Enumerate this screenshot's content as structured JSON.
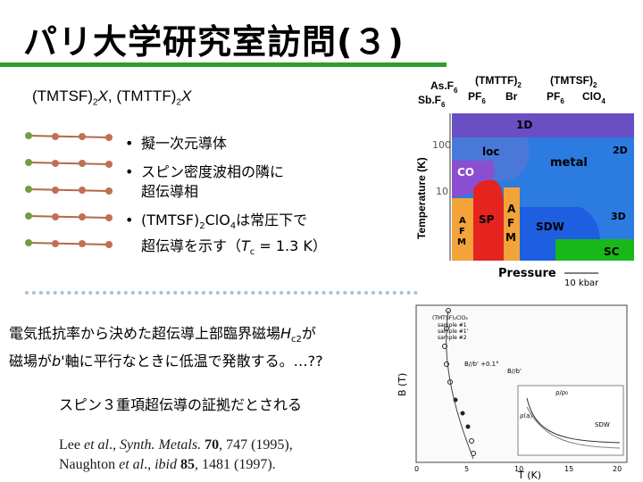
{
  "slide": {
    "title": "パリ大学研究室訪問(３)",
    "accent_color": "#2e9e2e",
    "formula": {
      "part1_open": "(TMTSF)",
      "part1_sub": "2",
      "part1_var": "X",
      "sep": ", ",
      "part2_open": "(TMTTF)",
      "part2_sub": "2",
      "part2_var": "X"
    },
    "bullets": {
      "b1": "擬一次元導体",
      "b2_line1": "スピン密度波相の隣に",
      "b2_line2": "超伝導相",
      "b3_line1_pre": "(TMTSF)",
      "b3_line1_sub": "2",
      "b3_line1_mid": "ClO",
      "b3_line1_sub2": "4",
      "b3_line1_post": "は常圧下で",
      "b3_line2_pre": "超伝導を示す（",
      "b3_line2_var": "T",
      "b3_line2_sub": "c",
      "b3_line2_post": " = 1.3 K）"
    },
    "hc2_text": {
      "line1_pre": "電気抵抗率から決めた超伝導上部臨界磁場",
      "line1_var": "H",
      "line1_sub": "c2",
      "line1_post": "が",
      "line2_pre": "磁場が",
      "line2_var": "b'",
      "line2_post": "軸に平行なときに低温で発散する。…??"
    },
    "evidence": "スピン３重項超伝導の証拠だとされる",
    "references": {
      "ref1_pre": "Lee ",
      "ref1_etal": "et al",
      "ref1_mid": "., ",
      "ref1_journal": "Synth. Metals.",
      "ref1_vol": "70",
      "ref1_post": ", 747 (1995),",
      "ref2_pre": "Naughton ",
      "ref2_etal": "et al",
      "ref2_mid": "., ",
      "ref2_journal": "ibid",
      "ref2_vol": "85",
      "ref2_post": ", 1481 (1997)."
    }
  },
  "phase_diagram": {
    "top_labels": {
      "asf6": "As.F",
      "tmttf2": "(TMTTF)",
      "tmttf2_sub": "2",
      "tmtsf2": "(TMTSF)",
      "tmtsf2_sub": "2",
      "sbf6": "Sb.F",
      "sbf6_sub": "6",
      "asf6_sub": "6",
      "pf6_a": "PF",
      "pf6_a_sub": "6",
      "br": "Br",
      "pf6_b": "PF",
      "pf6_b_sub": "6",
      "clo4": "ClO",
      "clo4_sub": "4"
    },
    "ylabel": "Temperature (K)",
    "y_ticks": [
      "100",
      "10"
    ],
    "regions": {
      "d1": "1D",
      "loc": "loc",
      "d2": "2D",
      "metal": "metal",
      "co": "CO",
      "sp": "SP",
      "afm_left": [
        "A",
        "F",
        "M"
      ],
      "afm_mid": [
        "A",
        "F",
        "M"
      ],
      "sdw": "SDW",
      "d3": "3D",
      "sc": "SC"
    },
    "xlabel": "Pressure",
    "scale_label": "10 kbar",
    "colors": {
      "d1": "#6a4fc4",
      "loc": "#4a78d8",
      "metal": "#2c7be0",
      "co": "#8a4fd0",
      "sp": "#e5231f",
      "afm": "#f2a33a",
      "sdw": "#1d5fe0",
      "sc": "#18b818",
      "afm_yellow": "#f5e64a"
    }
  },
  "hc2_plot": {
    "ylabel": "B (T)",
    "xlabel": "T (K)",
    "legend": [
      "(TMTSF)₂ClO₄",
      "sample #1",
      "sample #1'",
      "sample #2"
    ],
    "annotation_field": "B//b'",
    "annotation_angle": "B//b' +0.1°",
    "inset_labels": [
      "ρ/ρ₀",
      "ρ(a)",
      "SDW"
    ],
    "x_ticks": [
      "0",
      "5",
      "10",
      "15",
      "20"
    ]
  }
}
